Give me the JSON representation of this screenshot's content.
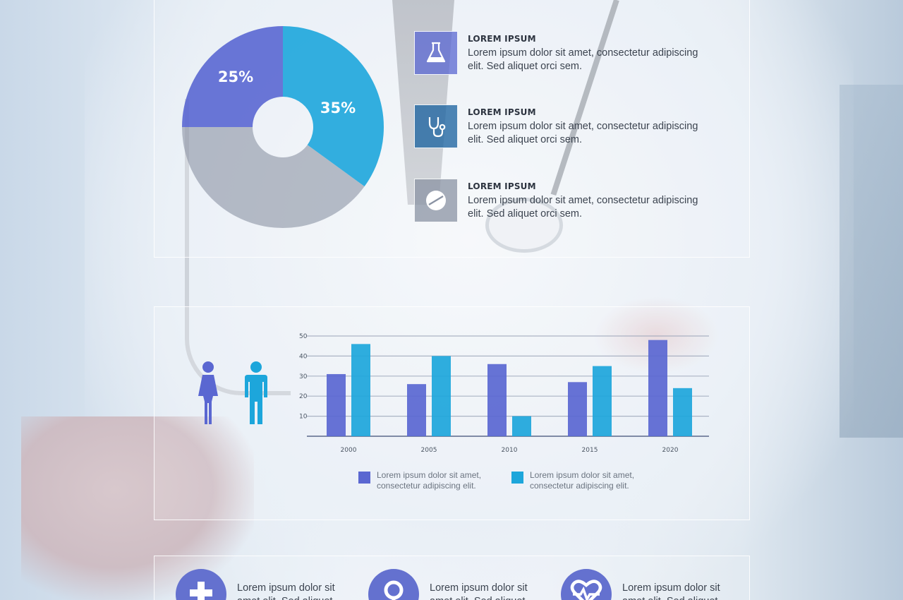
{
  "colors": {
    "purple": "#5a67d1",
    "cyan": "#1da6db",
    "grey": "#8a93a3",
    "white": "#ffffff"
  },
  "pie_chart": {
    "type": "pie",
    "slices": [
      {
        "label": "25%",
        "value": 25,
        "color": "#5a67d1"
      },
      {
        "label": "35%",
        "value": 35,
        "color": "#1da6db"
      },
      {
        "label": "",
        "value": 40,
        "color": "#8a93a3"
      }
    ]
  },
  "info_items": [
    {
      "icon": "flask-icon",
      "title": "LOREM IPSUM",
      "text": "Lorem ipsum dolor sit amet, consectetur adipiscing elit. Sed aliquet orci sem."
    },
    {
      "icon": "stethoscope-icon",
      "title": "LOREM IPSUM",
      "text": "Lorem ipsum dolor sit amet, consectetur adipiscing elit. Sed aliquet orci sem."
    },
    {
      "icon": "pill-icon",
      "title": "LOREM IPSUM",
      "text": "Lorem ipsum dolor sit amet, consectetur adipiscing elit. Sed aliquet orci sem."
    }
  ],
  "people_icons": [
    {
      "icon": "female-icon",
      "color": "#5a67d1"
    },
    {
      "icon": "male-icon",
      "color": "#1da6db"
    }
  ],
  "chart_data": {
    "type": "bar",
    "categories": [
      "2000",
      "2005",
      "2010",
      "2015",
      "2020"
    ],
    "series": [
      {
        "values": [
          31,
          26,
          36,
          27,
          48
        ],
        "color": "#5a67d1"
      },
      {
        "values": [
          46,
          40,
          10,
          35,
          24
        ],
        "color": "#1da6db"
      }
    ],
    "y_ticks": [
      "10",
      "20",
      "30",
      "40",
      "50"
    ],
    "ylim": [
      0,
      50
    ],
    "grid": true,
    "legend": "bottom",
    "legend_entries": [
      {
        "text": "Lorem ipsum dolor sit amet, consectetur adipiscing elit.",
        "color": "#5a67d1"
      },
      {
        "text": "Lorem ipsum dolor sit amet, consectetur adipiscing elit.",
        "color": "#1da6db"
      }
    ]
  },
  "bottom_items": [
    {
      "icon": "plus-cross-icon",
      "text": "Lorem ipsum dolor sit amet elit. Sed aliquet"
    },
    {
      "icon": "search-icon",
      "text": "Lorem ipsum dolor sit amet elit. Sed aliquet"
    },
    {
      "icon": "heart-pulse-icon",
      "text": "Lorem ipsum dolor sit amet elit. Sed aliquet"
    }
  ]
}
